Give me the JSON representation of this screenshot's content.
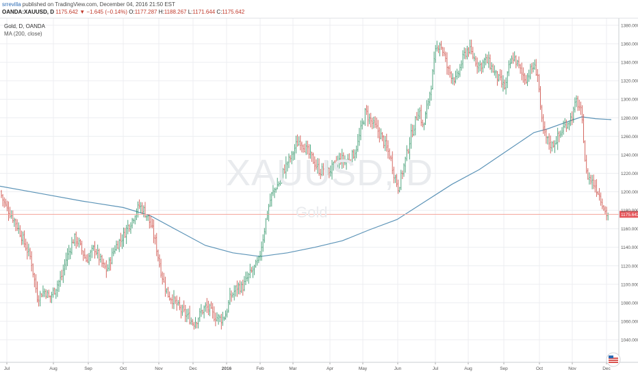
{
  "header": {
    "author": "srrevilla",
    "published_text": "published on TradingView.com, December 04, 2016 21:50 EST",
    "symbol_line": "OANDA:XAUUSD, D",
    "last": "1175.642",
    "change": "−1.645 (−0.14%)",
    "open_label": "O:",
    "open": "1177.287",
    "high_label": "H:",
    "high": "1188.267",
    "low_label": "L:",
    "low": "1171.644",
    "close_label": "C:",
    "close": "1175.642"
  },
  "legend": {
    "title": "Gold, D, OANDA",
    "indicator": "MA (200, close)"
  },
  "watermark": {
    "symbol": "XAUUSD, D",
    "name": "Gold"
  },
  "colors": {
    "up": "#3c9a70",
    "down": "#d0564f",
    "ma": "#5b93b7",
    "price_line": "#f4a79d",
    "price_tag": "#e5565b",
    "grid": "#eceef1",
    "axis_text": "#555555"
  },
  "chart_data": {
    "type": "ohlc",
    "title": "Gold, D, OANDA",
    "xlabel": "",
    "ylabel": "",
    "ylim": [
      1030,
      1390
    ],
    "x_tick_labels": [
      "Jul",
      "Aug",
      "Sep",
      "Oct",
      "Nov",
      "Dec",
      "2016",
      "Feb",
      "Mar",
      "Apr",
      "May",
      "Jun",
      "Jul",
      "Aug",
      "Sep",
      "Oct",
      "Nov",
      "Dec"
    ],
    "y_tick_labels": [
      "1040.000",
      "1060.000",
      "1080.000",
      "1100.000",
      "1120.000",
      "1140.000",
      "1160.000",
      "1180.000",
      "1200.000",
      "1220.000",
      "1240.000",
      "1260.000",
      "1280.000",
      "1300.000",
      "1320.000",
      "1340.000",
      "1360.000",
      "1380.000"
    ],
    "y_ticks": [
      1040,
      1060,
      1080,
      1100,
      1120,
      1140,
      1160,
      1180,
      1200,
      1220,
      1240,
      1260,
      1280,
      1300,
      1320,
      1340,
      1360,
      1380
    ],
    "current_price": 1175.642,
    "current_price_label": "1175.642",
    "grid": true,
    "price_path": [
      [
        0,
        1200
      ],
      [
        4,
        1192
      ],
      [
        10,
        1182
      ],
      [
        16,
        1176
      ],
      [
        22,
        1168
      ],
      [
        30,
        1155
      ],
      [
        38,
        1140
      ],
      [
        45,
        1128
      ],
      [
        50,
        1105
      ],
      [
        55,
        1085
      ],
      [
        60,
        1090
      ],
      [
        66,
        1093
      ],
      [
        72,
        1085
      ],
      [
        78,
        1092
      ],
      [
        84,
        1100
      ],
      [
        90,
        1108
      ],
      [
        96,
        1126
      ],
      [
        102,
        1138
      ],
      [
        108,
        1150
      ],
      [
        114,
        1146
      ],
      [
        120,
        1136
      ],
      [
        126,
        1126
      ],
      [
        132,
        1132
      ],
      [
        138,
        1140
      ],
      [
        144,
        1130
      ],
      [
        150,
        1120
      ],
      [
        156,
        1115
      ],
      [
        162,
        1128
      ],
      [
        168,
        1140
      ],
      [
        174,
        1146
      ],
      [
        180,
        1152
      ],
      [
        186,
        1162
      ],
      [
        192,
        1168
      ],
      [
        198,
        1178
      ],
      [
        204,
        1185
      ],
      [
        210,
        1180
      ],
      [
        216,
        1172
      ],
      [
        222,
        1160
      ],
      [
        228,
        1142
      ],
      [
        234,
        1118
      ],
      [
        240,
        1100
      ],
      [
        246,
        1088
      ],
      [
        252,
        1084
      ],
      [
        258,
        1078
      ],
      [
        264,
        1072
      ],
      [
        270,
        1068
      ],
      [
        276,
        1064
      ],
      [
        282,
        1058
      ],
      [
        288,
        1062
      ],
      [
        294,
        1070
      ],
      [
        300,
        1075
      ],
      [
        306,
        1073
      ],
      [
        312,
        1066
      ],
      [
        318,
        1064
      ],
      [
        324,
        1062
      ],
      [
        330,
        1068
      ],
      [
        336,
        1085
      ],
      [
        342,
        1092
      ],
      [
        348,
        1098
      ],
      [
        354,
        1096
      ],
      [
        360,
        1105
      ],
      [
        366,
        1112
      ],
      [
        372,
        1118
      ],
      [
        378,
        1125
      ],
      [
        384,
        1150
      ],
      [
        390,
        1176
      ],
      [
        396,
        1195
      ],
      [
        402,
        1204
      ],
      [
        408,
        1210
      ],
      [
        414,
        1222
      ],
      [
        420,
        1232
      ],
      [
        426,
        1238
      ],
      [
        432,
        1250
      ],
      [
        438,
        1256
      ],
      [
        444,
        1250
      ],
      [
        450,
        1242
      ],
      [
        456,
        1236
      ],
      [
        462,
        1228
      ],
      [
        468,
        1222
      ],
      [
        474,
        1226
      ],
      [
        480,
        1222
      ],
      [
        486,
        1226
      ],
      [
        492,
        1230
      ],
      [
        498,
        1236
      ],
      [
        504,
        1232
      ],
      [
        510,
        1236
      ],
      [
        516,
        1240
      ],
      [
        522,
        1250
      ],
      [
        528,
        1270
      ],
      [
        534,
        1287
      ],
      [
        540,
        1278
      ],
      [
        546,
        1272
      ],
      [
        552,
        1266
      ],
      [
        558,
        1258
      ],
      [
        564,
        1248
      ],
      [
        570,
        1238
      ],
      [
        576,
        1218
      ],
      [
        582,
        1204
      ],
      [
        588,
        1222
      ],
      [
        594,
        1240
      ],
      [
        600,
        1260
      ],
      [
        606,
        1274
      ],
      [
        612,
        1290
      ],
      [
        618,
        1268
      ],
      [
        624,
        1292
      ],
      [
        630,
        1316
      ],
      [
        636,
        1350
      ],
      [
        642,
        1362
      ],
      [
        648,
        1350
      ],
      [
        654,
        1332
      ],
      [
        660,
        1326
      ],
      [
        666,
        1320
      ],
      [
        672,
        1334
      ],
      [
        678,
        1348
      ],
      [
        684,
        1355
      ],
      [
        690,
        1348
      ],
      [
        696,
        1340
      ],
      [
        702,
        1336
      ],
      [
        708,
        1342
      ],
      [
        714,
        1340
      ],
      [
        720,
        1332
      ],
      [
        726,
        1324
      ],
      [
        732,
        1318
      ],
      [
        738,
        1312
      ],
      [
        744,
        1336
      ],
      [
        750,
        1346
      ],
      [
        756,
        1338
      ],
      [
        762,
        1328
      ],
      [
        768,
        1322
      ],
      [
        774,
        1330
      ],
      [
        780,
        1336
      ],
      [
        786,
        1326
      ],
      [
        790,
        1282
      ],
      [
        795,
        1262
      ],
      [
        800,
        1255
      ],
      [
        806,
        1250
      ],
      [
        812,
        1256
      ],
      [
        818,
        1262
      ],
      [
        824,
        1270
      ],
      [
        830,
        1276
      ],
      [
        836,
        1282
      ],
      [
        842,
        1298
      ],
      [
        848,
        1288
      ],
      [
        852,
        1264
      ],
      [
        856,
        1220
      ],
      [
        862,
        1214
      ],
      [
        868,
        1208
      ],
      [
        874,
        1200
      ],
      [
        880,
        1188
      ],
      [
        885,
        1176
      ],
      [
        890,
        1175.642
      ]
    ],
    "ma_path": [
      [
        0,
        1206
      ],
      [
        60,
        1198
      ],
      [
        120,
        1190
      ],
      [
        180,
        1183
      ],
      [
        220,
        1174
      ],
      [
        260,
        1158
      ],
      [
        300,
        1142
      ],
      [
        340,
        1134
      ],
      [
        380,
        1130
      ],
      [
        420,
        1134
      ],
      [
        460,
        1140
      ],
      [
        500,
        1147
      ],
      [
        540,
        1159
      ],
      [
        580,
        1170
      ],
      [
        620,
        1189
      ],
      [
        660,
        1208
      ],
      [
        700,
        1224
      ],
      [
        740,
        1244
      ],
      [
        780,
        1264
      ],
      [
        800,
        1268
      ],
      [
        830,
        1276
      ],
      [
        850,
        1281
      ],
      [
        870,
        1279
      ],
      [
        893,
        1278
      ]
    ]
  }
}
